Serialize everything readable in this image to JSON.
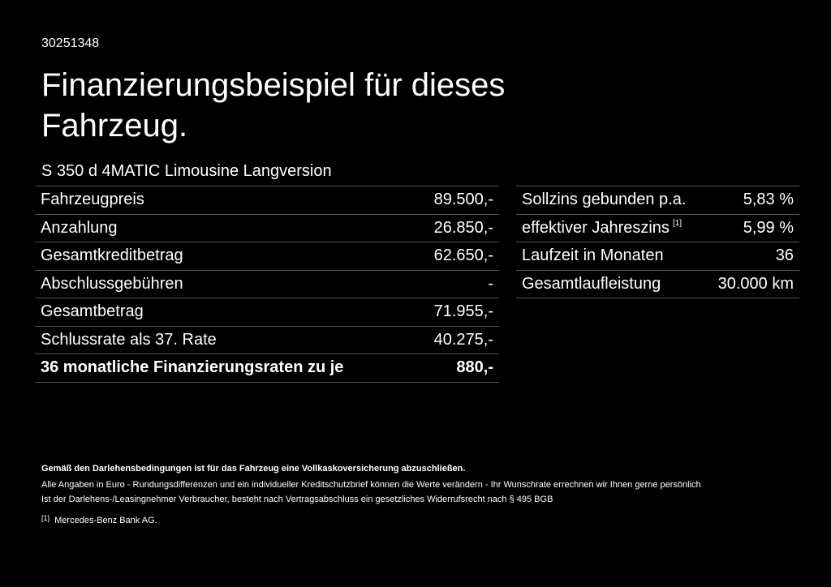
{
  "header": {
    "id": "30251348",
    "title": "Finanzierungsbeispiel für dieses Fahrzeug.",
    "model": "S 350 d 4MATIC Limousine Langversion"
  },
  "left_table": {
    "rows": [
      [
        "Fahrzeugpreis",
        "89.500,-"
      ],
      [
        "Anzahlung",
        "26.850,-"
      ],
      [
        "Gesamtkreditbetrag",
        "62.650,-"
      ],
      [
        "Abschlussgebühren",
        "-"
      ],
      [
        "Gesamtbetrag",
        "71.955,-"
      ],
      [
        "Schlussrate als 37. Rate",
        "40.275,-"
      ],
      [
        "36 monatliche Finanzierungsraten zu je",
        "880,-"
      ]
    ]
  },
  "right_table": {
    "rows": [
      [
        "Sollzins gebunden p.a.",
        "5,83 %"
      ],
      [
        "effektiver Jahreszins",
        "5,99 %"
      ],
      [
        "Laufzeit in Monaten",
        "36"
      ],
      [
        "Gesamtlaufleistung",
        "30.000 km"
      ]
    ],
    "note_marker": "[1]"
  },
  "footer": {
    "bold_note": "Gemäß den Darlehensbedingungen ist für das Fahrzeug eine Vollkaskoversicherung abzuschließen.",
    "notes": [
      "Alle Angaben in Euro - Rundungsdifferenzen und ein individueller Kreditschutzbrief können die Werte verändern - Ihr Wunschrate errechnen wir Ihnen gerne persönlich",
      "Ist der Darlehens-/Leasingnehmer Verbraucher, besteht nach Vertragsabschluss ein gesetzliches Widerrufsrecht nach § 495 BGB"
    ],
    "footnote": {
      "marker": "[1]",
      "text": "Mercedes-Benz Bank AG."
    }
  }
}
